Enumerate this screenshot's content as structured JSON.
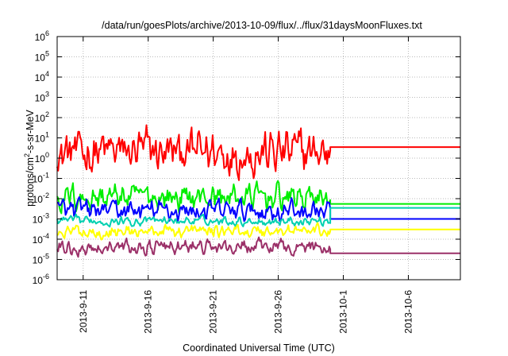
{
  "chart_data": {
    "type": "line",
    "title": "/data/run/goesPlots/archive/2013-10-09/flux/../flux/31daysMoonFluxes.txt",
    "xlabel": "Coordinated Universal Time (UTC)",
    "ylabel": {
      "prefix": "protons/cm",
      "sup": "2",
      "suffix": "-s-sr-MeV"
    },
    "y_scale": "log",
    "ylim": [
      1e-06,
      1000000.0
    ],
    "y_ticks": [
      {
        "base": "10",
        "exp": "-6"
      },
      {
        "base": "10",
        "exp": "-5"
      },
      {
        "base": "10",
        "exp": "-4"
      },
      {
        "base": "10",
        "exp": "-3"
      },
      {
        "base": "10",
        "exp": "-2"
      },
      {
        "base": "10",
        "exp": "-1"
      },
      {
        "base": "10",
        "exp": "0"
      },
      {
        "base": "10",
        "exp": "1"
      },
      {
        "base": "10",
        "exp": "2"
      },
      {
        "base": "10",
        "exp": "3"
      },
      {
        "base": "10",
        "exp": "4"
      },
      {
        "base": "10",
        "exp": "5"
      },
      {
        "base": "10",
        "exp": "6"
      }
    ],
    "x_range": [
      "2013-09-09",
      "2013-10-10"
    ],
    "x_ticks": [
      "2013-9-11",
      "2013-9-16",
      "2013-9-21",
      "2013-9-26",
      "2013-10-1",
      "2013-10-6"
    ],
    "grid": true,
    "series": [
      {
        "color": "#ff0000",
        "data_end": "2013-09-30",
        "mean": 2.0,
        "spread": 0.75,
        "final_level": 3.5
      },
      {
        "color": "#00ee00",
        "data_end": "2013-09-30",
        "mean": 0.012,
        "spread": 0.45,
        "final_level": 0.0055
      },
      {
        "color": "#0000ff",
        "data_end": "2013-09-30",
        "mean": 0.0025,
        "spread": 0.35,
        "final_level": 0.001
      },
      {
        "color": "#00d0b0",
        "data_end": "2013-09-30",
        "mean": 0.0008,
        "spread": 0.15,
        "final_level": 0.0035
      },
      {
        "color": "#ffff00",
        "data_end": "2013-09-30",
        "mean": 0.00025,
        "spread": 0.22,
        "final_level": 0.0003
      },
      {
        "color": "#9b3068",
        "data_end": "2013-09-30",
        "mean": 4e-05,
        "spread": 0.25,
        "final_level": 2e-05
      }
    ]
  }
}
